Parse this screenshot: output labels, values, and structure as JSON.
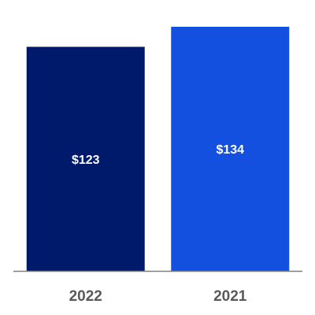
{
  "chart_data": {
    "type": "bar",
    "categories": [
      "2022",
      "2021"
    ],
    "values": [
      123,
      134
    ],
    "value_labels": [
      "$123",
      "$134"
    ],
    "colors": [
      "#001a6b",
      "#1450e0"
    ]
  }
}
